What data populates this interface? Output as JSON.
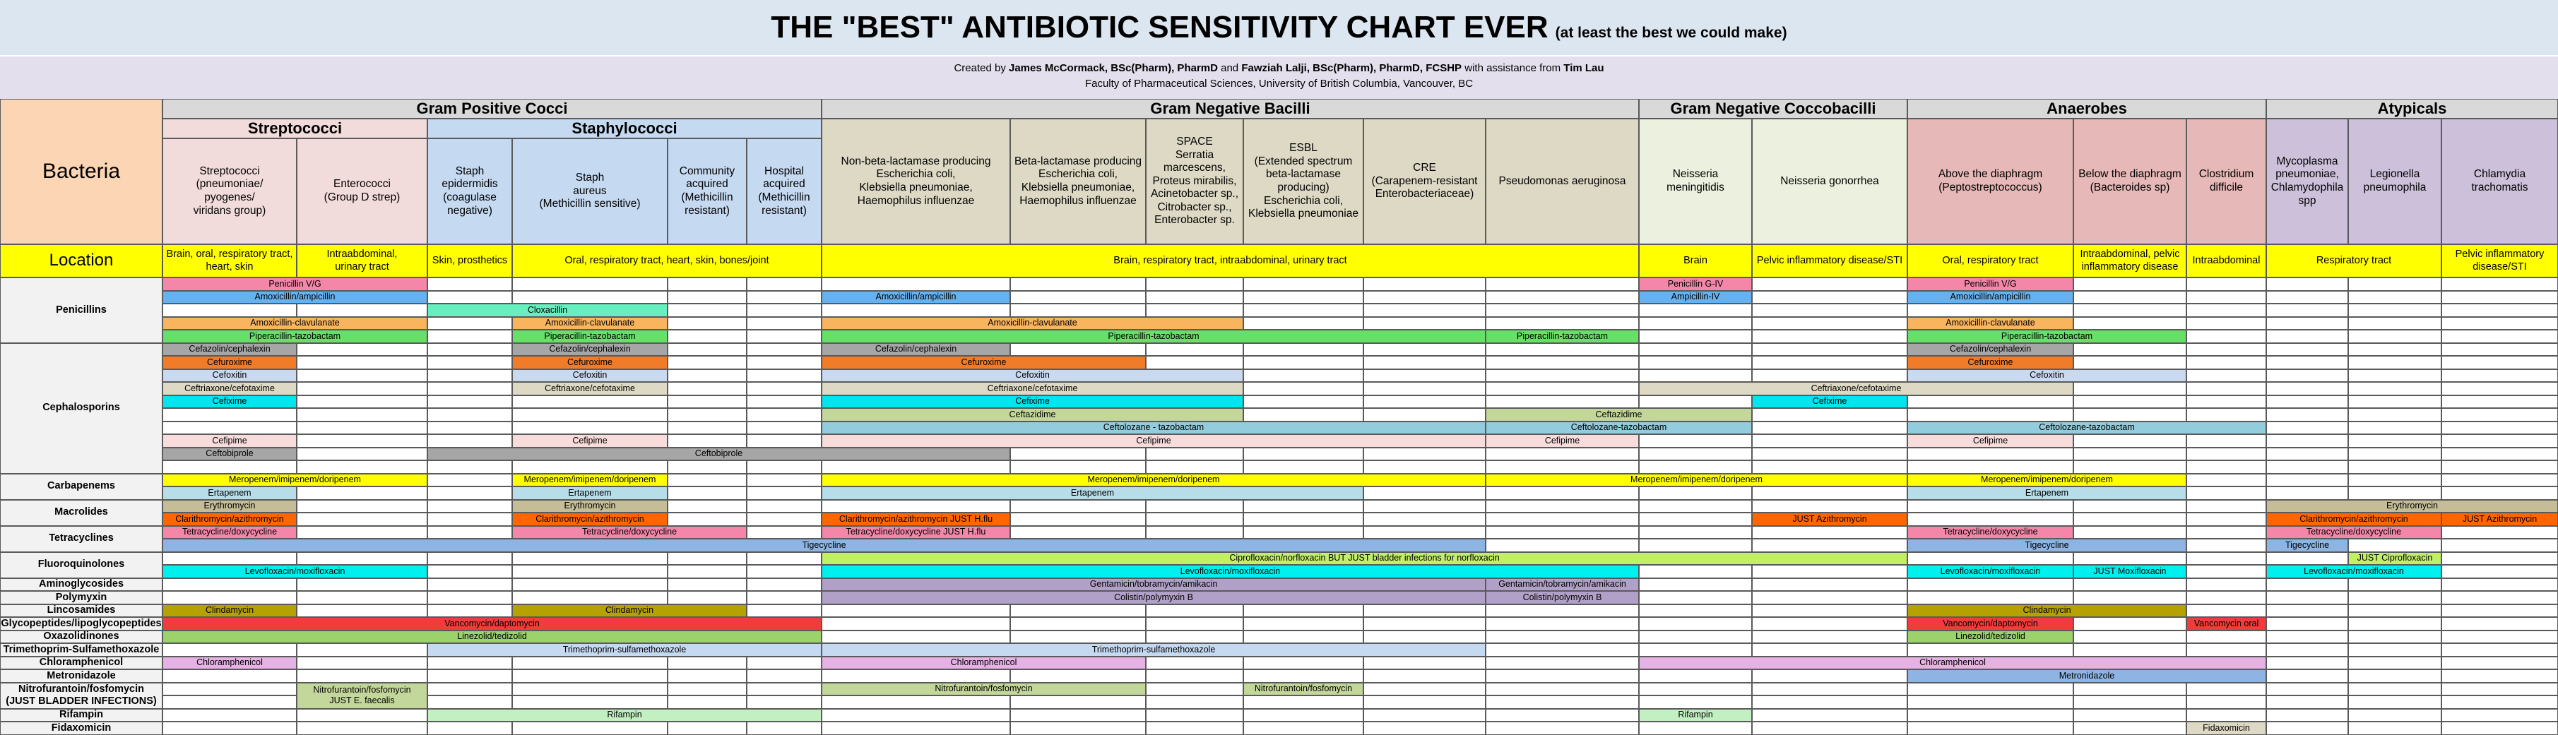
{
  "title": {
    "main": "THE \"BEST\" ANTIBIOTIC SENSITIVITY CHART EVER",
    "sub": "(at least the best we could make)"
  },
  "credits": {
    "created_by": "Created by",
    "author1": "James McCormack, BSc(Pharm), PharmD",
    "and": "and",
    "author2": "Fawziah Lalji, BSc(Pharm), PharmD, FCSHP",
    "assistance": "with assistance from",
    "assistant": "Tim Lau",
    "faculty": "Faculty of Pharmaceutical Sciences, University of British Columbia, Vancouver, BC"
  },
  "labels": {
    "bacteria": "Bacteria",
    "location": "Location"
  },
  "groups": [
    {
      "label": "Gram Positive Cocci",
      "color": "#d9d9d9"
    },
    {
      "label": "Gram Negative Bacilli",
      "color": "#d9d9d9"
    },
    {
      "label": "Gram Negative Coccobacilli",
      "color": "#d9d9d9"
    },
    {
      "label": "Anaerobes",
      "color": "#d9d9d9"
    },
    {
      "label": "Atypicals",
      "color": "#d9d9d9"
    }
  ],
  "subgroups": [
    {
      "label": "Streptococci",
      "color": "#f2dcdb"
    },
    {
      "label": "Staphylococci",
      "color": "#c5d9f1"
    }
  ],
  "organisms": [
    {
      "label": "Streptococci\n(pneumoniae/\npyogenes/\nviridans group)",
      "color": "#f2dcdb"
    },
    {
      "label": "Enterococci\n(Group D strep)",
      "color": "#f2dcdb"
    },
    {
      "label": "Staph\nepidermidis\n(coagulase\nnegative)",
      "color": "#c5d9f1"
    },
    {
      "label": "Staph\naureus\n(Methicillin sensitive)",
      "color": "#c5d9f1"
    },
    {
      "label": "Community\nacquired\n(Methicillin\nresistant)",
      "color": "#c5d9f1"
    },
    {
      "label": "Hospital\nacquired\n(Methicillin\nresistant)",
      "color": "#c5d9f1"
    },
    {
      "label": "Non-beta-lactamase producing\nEscherichia coli,\nKlebsiella pneumoniae,\nHaemophilus influenzae",
      "color": "#ddd9c4"
    },
    {
      "label": "Beta-lactamase producing\nEscherichia coli,\nKlebsiella pneumoniae,\nHaemophilus influenzae",
      "color": "#ddd9c4"
    },
    {
      "label": "SPACE\nSerratia\nmarcescens,\nProteus mirabilis,\nAcinetobacter sp.,\nCitrobacter sp.,\nEnterobacter sp.",
      "color": "#ddd9c4"
    },
    {
      "label": "ESBL\n(Extended spectrum\nbeta-lactamase\nproducing)\nEscherichia coli,\nKlebsiella pneumoniae",
      "color": "#ddd9c4"
    },
    {
      "label": "CRE\n(Carapenem-resistant\nEnterobacteriaceae)",
      "color": "#ddd9c4"
    },
    {
      "label": "Pseudomonas aeruginosa",
      "color": "#ddd9c4"
    },
    {
      "label": "Neisseria\nmeningitidis",
      "color": "#ebf1de"
    },
    {
      "label": "Neisseria gonorrhea",
      "color": "#ebf1de"
    },
    {
      "label": "Above the diaphragm\n(Peptostreptococcus)",
      "color": "#e6b8b7"
    },
    {
      "label": "Below the diaphragm\n(Bacteroides sp)",
      "color": "#e6b8b7"
    },
    {
      "label": "Clostridium\ndifficile",
      "color": "#e6b8b7"
    },
    {
      "label": "Mycoplasma\npneumoniae,\nChlamydophila\nspp",
      "color": "#ccc0da"
    },
    {
      "label": "Legionella\npneumophila",
      "color": "#ccc0da"
    },
    {
      "label": "Chlamydia\ntrachomatis",
      "color": "#ccc0da"
    }
  ],
  "locations": [
    {
      "from": 0,
      "to": 0,
      "label": "Brain, oral, respiratory tract,\nheart, skin"
    },
    {
      "from": 1,
      "to": 1,
      "label": "Intraabdominal,\nurinary tract"
    },
    {
      "from": 2,
      "to": 2,
      "label": "Skin, prosthetics"
    },
    {
      "from": 3,
      "to": 5,
      "label": "Oral, respiratory tract, heart, skin, bones/joint"
    },
    {
      "from": 6,
      "to": 11,
      "label": "Brain, respiratory tract, intraabdominal, urinary tract"
    },
    {
      "from": 12,
      "to": 12,
      "label": "Brain"
    },
    {
      "from": 13,
      "to": 13,
      "label": "Pelvic inflammatory disease/STI"
    },
    {
      "from": 14,
      "to": 14,
      "label": "Oral, respiratory tract"
    },
    {
      "from": 15,
      "to": 15,
      "label": "Intraabdominal, pelvic\ninflammatory disease"
    },
    {
      "from": 16,
      "to": 16,
      "label": "Intraabdominal"
    },
    {
      "from": 17,
      "to": 18,
      "label": "Respiratory tract"
    },
    {
      "from": 19,
      "to": 19,
      "label": "Pelvic inflammatory\ndisease/STI"
    }
  ],
  "classes": [
    {
      "label": "Penicillins",
      "rows": 5
    },
    {
      "label": "Cephalosporins",
      "rows": 10
    },
    {
      "label": "Carbapenems",
      "rows": 2
    },
    {
      "label": "Macrolides",
      "rows": 2
    },
    {
      "label": "Tetracyclines",
      "rows": 2
    },
    {
      "label": "Fluoroquinolones",
      "rows": 2
    },
    {
      "label": "Aminoglycosides",
      "rows": 1
    },
    {
      "label": "Polymyxin",
      "rows": 1
    },
    {
      "label": "Lincosamides",
      "rows": 1
    },
    {
      "label": "Glycopeptides/lipoglycopeptides",
      "rows": 1
    },
    {
      "label": "Oxazolidinones",
      "rows": 1
    },
    {
      "label": "Trimethoprim-Sulfamethoxazole",
      "rows": 1
    },
    {
      "label": "Chloramphenicol",
      "rows": 1
    },
    {
      "label": "Metronidazole",
      "rows": 1
    },
    {
      "label": "Nitrofurantoin/fosfomycin\n(JUST BLADDER INFECTIONS)",
      "rows": 2
    },
    {
      "label": "Rifampin",
      "rows": 1
    },
    {
      "label": "Fidaxomicin",
      "rows": 1
    }
  ],
  "coverage": [
    {
      "r": 0,
      "c1": 0,
      "c2": 1,
      "label": "Penicillin V/G",
      "color": "#f487a9"
    },
    {
      "r": 0,
      "c1": 12,
      "c2": 12,
      "label": "Penicillin G-IV",
      "color": "#f487a9"
    },
    {
      "r": 0,
      "c1": 14,
      "c2": 14,
      "label": "Penicillin V/G",
      "color": "#f487a9"
    },
    {
      "r": 1,
      "c1": 0,
      "c2": 1,
      "label": "Amoxicillin/ampicillin",
      "color": "#66b2f0"
    },
    {
      "r": 1,
      "c1": 6,
      "c2": 6,
      "label": "Amoxicillin/ampicillin",
      "color": "#66b2f0"
    },
    {
      "r": 1,
      "c1": 12,
      "c2": 12,
      "label": "Ampicillin-IV",
      "color": "#66b2f0"
    },
    {
      "r": 1,
      "c1": 14,
      "c2": 14,
      "label": "Amoxicillin/ampicillin",
      "color": "#66b2f0"
    },
    {
      "r": 2,
      "c1": 2,
      "c2": 3,
      "label": "Cloxacillin",
      "color": "#66f0c0"
    },
    {
      "r": 3,
      "c1": 0,
      "c2": 1,
      "label": "Amoxicillin-clavulanate",
      "color": "#f9b45e"
    },
    {
      "r": 3,
      "c1": 3,
      "c2": 3,
      "label": "Amoxicillin-clavulanate",
      "color": "#f9b45e"
    },
    {
      "r": 3,
      "c1": 6,
      "c2": 8,
      "label": "Amoxicillin-clavulanate",
      "color": "#f9b45e"
    },
    {
      "r": 3,
      "c1": 14,
      "c2": 14,
      "label": "Amoxicillin-clavulanate",
      "color": "#f9b45e"
    },
    {
      "r": 4,
      "c1": 0,
      "c2": 1,
      "label": "Piperacillin-tazobactam",
      "color": "#66e066"
    },
    {
      "r": 4,
      "c1": 3,
      "c2": 3,
      "label": "Piperacillin-tazobactam",
      "color": "#66e066"
    },
    {
      "r": 4,
      "c1": 6,
      "c2": 10,
      "label": "Piperacillin-tazobactam",
      "color": "#66e066"
    },
    {
      "r": 4,
      "c1": 11,
      "c2": 11,
      "label": "Piperacillin-tazobactam",
      "color": "#66e066"
    },
    {
      "r": 4,
      "c1": 14,
      "c2": 15,
      "label": "Piperacillin-tazobactam",
      "color": "#66e066"
    },
    {
      "r": 5,
      "c1": 0,
      "c2": 0,
      "label": "Cefazolin/cephalexin",
      "color": "#a6a6a6"
    },
    {
      "r": 5,
      "c1": 3,
      "c2": 3,
      "label": "Cefazolin/cephalexin",
      "color": "#a6a6a6"
    },
    {
      "r": 5,
      "c1": 6,
      "c2": 6,
      "label": "Cefazolin/cephalexin",
      "color": "#a6a6a6"
    },
    {
      "r": 5,
      "c1": 14,
      "c2": 14,
      "label": "Cefazolin/cephalexin",
      "color": "#a6a6a6"
    },
    {
      "r": 6,
      "c1": 0,
      "c2": 0,
      "label": "Cefuroxime",
      "color": "#f07c2a"
    },
    {
      "r": 6,
      "c1": 3,
      "c2": 3,
      "label": "Cefuroxime",
      "color": "#f07c2a"
    },
    {
      "r": 6,
      "c1": 6,
      "c2": 7,
      "label": "Cefuroxime",
      "color": "#f07c2a"
    },
    {
      "r": 6,
      "c1": 14,
      "c2": 14,
      "label": "Cefuroxime",
      "color": "#f07c2a"
    },
    {
      "r": 7,
      "c1": 0,
      "c2": 0,
      "label": "Cefoxitin",
      "color": "#c9daf0"
    },
    {
      "r": 7,
      "c1": 3,
      "c2": 3,
      "label": "Cefoxitin",
      "color": "#c9daf0"
    },
    {
      "r": 7,
      "c1": 6,
      "c2": 8,
      "label": "Cefoxitin",
      "color": "#c9daf0"
    },
    {
      "r": 7,
      "c1": 14,
      "c2": 15,
      "label": "Cefoxitin",
      "color": "#c9daf0"
    },
    {
      "r": 8,
      "c1": 0,
      "c2": 0,
      "label": "Ceftriaxone/cefotaxime",
      "color": "#ddd9c4"
    },
    {
      "r": 8,
      "c1": 3,
      "c2": 3,
      "label": "Ceftriaxone/cefotaxime",
      "color": "#ddd9c4"
    },
    {
      "r": 8,
      "c1": 6,
      "c2": 8,
      "label": "Ceftriaxone/cefotaxime",
      "color": "#ddd9c4"
    },
    {
      "r": 8,
      "c1": 12,
      "c2": 14,
      "label": "Ceftriaxone/cefotaxime",
      "color": "#ddd9c4"
    },
    {
      "r": 9,
      "c1": 0,
      "c2": 0,
      "label": "Cefixime",
      "color": "#00e5f0"
    },
    {
      "r": 9,
      "c1": 6,
      "c2": 8,
      "label": "Cefixime",
      "color": "#00e5f0"
    },
    {
      "r": 9,
      "c1": 13,
      "c2": 13,
      "label": "Cefixime",
      "color": "#00e5f0"
    },
    {
      "r": 10,
      "c1": 6,
      "c2": 8,
      "label": "Ceftazidime",
      "color": "#c4d79b"
    },
    {
      "r": 10,
      "c1": 11,
      "c2": 12,
      "label": "Ceftazidime",
      "color": "#c4d79b"
    },
    {
      "r": 11,
      "c1": 6,
      "c2": 10,
      "label": "Ceftolozane - tazobactam",
      "color": "#93cddd"
    },
    {
      "r": 11,
      "c1": 11,
      "c2": 12,
      "label": "Ceftolozane-tazobactam",
      "color": "#93cddd"
    },
    {
      "r": 11,
      "c1": 14,
      "c2": 16,
      "label": "Ceftolozane-tazobactam",
      "color": "#93cddd"
    },
    {
      "r": 12,
      "c1": 0,
      "c2": 0,
      "label": "Cefipime",
      "color": "#f8dcdc"
    },
    {
      "r": 12,
      "c1": 3,
      "c2": 3,
      "label": "Cefipime",
      "color": "#f8dcdc"
    },
    {
      "r": 12,
      "c1": 6,
      "c2": 10,
      "label": "Cefipime",
      "color": "#f8dcdc"
    },
    {
      "r": 12,
      "c1": 11,
      "c2": 11,
      "label": "Cefipime",
      "color": "#f8dcdc"
    },
    {
      "r": 12,
      "c1": 14,
      "c2": 14,
      "label": "Cefipime",
      "color": "#f8dcdc"
    },
    {
      "r": 13,
      "c1": 0,
      "c2": 0,
      "label": "Ceftobiprole",
      "color": "#a6a6a6"
    },
    {
      "r": 13,
      "c1": 2,
      "c2": 6,
      "label": "Ceftobiprole",
      "color": "#a6a6a6"
    },
    {
      "r": 15,
      "c1": 0,
      "c2": 1,
      "label": "Meropenem/imipenem/doripenem",
      "color": "#ffff00"
    },
    {
      "r": 15,
      "c1": 3,
      "c2": 3,
      "label": "Meropenem/imipenem/doripenem",
      "color": "#ffff00"
    },
    {
      "r": 15,
      "c1": 6,
      "c2": 10,
      "label": "Meropenem/imipenem/doripenem",
      "color": "#ffff00"
    },
    {
      "r": 15,
      "c1": 11,
      "c2": 13,
      "label": "Meropenem/imipenem/doripenem",
      "color": "#ffff00"
    },
    {
      "r": 15,
      "c1": 14,
      "c2": 15,
      "label": "Meropenem/imipenem/doripenem",
      "color": "#ffff00"
    },
    {
      "r": 16,
      "c1": 0,
      "c2": 0,
      "label": "Ertapenem",
      "color": "#b7dde8"
    },
    {
      "r": 16,
      "c1": 3,
      "c2": 3,
      "label": "Ertapenem",
      "color": "#b7dde8"
    },
    {
      "r": 16,
      "c1": 6,
      "c2": 9,
      "label": "Ertapenem",
      "color": "#b7dde8"
    },
    {
      "r": 16,
      "c1": 14,
      "c2": 15,
      "label": "Ertapenem",
      "color": "#b7dde8"
    },
    {
      "r": 17,
      "c1": 0,
      "c2": 0,
      "label": "Erythromycin",
      "color": "#c4bd97"
    },
    {
      "r": 17,
      "c1": 3,
      "c2": 3,
      "label": "Erythromycin",
      "color": "#c4bd97"
    },
    {
      "r": 17,
      "c1": 17,
      "c2": 19,
      "label": "Erythromycin",
      "color": "#c4bd97"
    },
    {
      "r": 18,
      "c1": 0,
      "c2": 0,
      "label": "Clarithromycin/azithromycin",
      "color": "#ff6600"
    },
    {
      "r": 18,
      "c1": 3,
      "c2": 3,
      "label": "Clarithromycin/azithromycin",
      "color": "#ff6600"
    },
    {
      "r": 18,
      "c1": 6,
      "c2": 6,
      "label": "Clarithromycin/azithromycin JUST H.flu",
      "color": "#ff6600"
    },
    {
      "r": 18,
      "c1": 13,
      "c2": 13,
      "label": "JUST Azithromycin",
      "color": "#ff6600"
    },
    {
      "r": 18,
      "c1": 17,
      "c2": 18,
      "label": "Clarithromycin/azithromycin",
      "color": "#ff6600"
    },
    {
      "r": 18,
      "c1": 19,
      "c2": 19,
      "label": "JUST Azithromycin",
      "color": "#ff6600"
    },
    {
      "r": 19,
      "c1": 0,
      "c2": 0,
      "label": "Tetracycline/doxycycline",
      "color": "#f487a9"
    },
    {
      "r": 19,
      "c1": 3,
      "c2": 4,
      "label": "Tetracycline/doxycycline",
      "color": "#f487a9"
    },
    {
      "r": 19,
      "c1": 6,
      "c2": 6,
      "label": "Tetracycline/doxycycline  JUST H.flu",
      "color": "#f487a9"
    },
    {
      "r": 19,
      "c1": 14,
      "c2": 14,
      "label": "Tetracycline/doxycycline",
      "color": "#f487a9"
    },
    {
      "r": 19,
      "c1": 17,
      "c2": 18,
      "label": "Tetracycline/doxycycline",
      "color": "#f487a9"
    },
    {
      "r": 20,
      "c1": 0,
      "c2": 10,
      "label": "Tigecycline",
      "color": "#8db4e2"
    },
    {
      "r": 20,
      "c1": 14,
      "c2": 15,
      "label": "Tigecycline",
      "color": "#8db4e2"
    },
    {
      "r": 20,
      "c1": 17,
      "c2": 17,
      "label": "Tigecycline",
      "color": "#8db4e2"
    },
    {
      "r": 21,
      "c1": 6,
      "c2": 13,
      "label": "Ciprofloxacin/norfloxacin BUT JUST bladder infections for norfloxacin",
      "color": "#c2f065"
    },
    {
      "r": 21,
      "c1": 18,
      "c2": 18,
      "label": "JUST Ciprofloxacin",
      "color": "#c2f065"
    },
    {
      "r": 22,
      "c1": 0,
      "c2": 1,
      "label": "Levofloxacin/moxifloxacin",
      "color": "#00f0f0"
    },
    {
      "r": 22,
      "c1": 6,
      "c2": 11,
      "label": "Levofloxacin/moxifloxacin",
      "color": "#00f0f0"
    },
    {
      "r": 22,
      "c1": 14,
      "c2": 14,
      "label": "Levofloxacin/moxifloxacin",
      "color": "#00f0f0"
    },
    {
      "r": 22,
      "c1": 15,
      "c2": 15,
      "label": "JUST Moxifloxacin",
      "color": "#00f0f0"
    },
    {
      "r": 22,
      "c1": 17,
      "c2": 18,
      "label": "Levofloxacin/moxifloxacin",
      "color": "#00f0f0"
    },
    {
      "r": 23,
      "c1": 6,
      "c2": 10,
      "label": "Gentamicin/tobramycin/amikacin",
      "color": "#b1a0c7"
    },
    {
      "r": 23,
      "c1": 11,
      "c2": 11,
      "label": "Gentamicin/tobramycin/amikacin",
      "color": "#b1a0c7"
    },
    {
      "r": 24,
      "c1": 6,
      "c2": 10,
      "label": "Colistin/polymyxin B",
      "color": "#b1a0c7"
    },
    {
      "r": 24,
      "c1": 11,
      "c2": 11,
      "label": "Colistin/polymyxin B",
      "color": "#b1a0c7"
    },
    {
      "r": 25,
      "c1": 0,
      "c2": 0,
      "label": "Clindamycin",
      "color": "#b5a200"
    },
    {
      "r": 25,
      "c1": 3,
      "c2": 4,
      "label": "Clindamycin",
      "color": "#b5a200"
    },
    {
      "r": 25,
      "c1": 14,
      "c2": 15,
      "label": "Clindamycin",
      "color": "#b5a200"
    },
    {
      "r": 26,
      "c1": 0,
      "c2": 5,
      "label": "Vancomycin/daptomycin",
      "color": "#f03c3c"
    },
    {
      "r": 26,
      "c1": 14,
      "c2": 14,
      "label": "Vancomycin/daptomycin",
      "color": "#f03c3c"
    },
    {
      "r": 26,
      "c1": 16,
      "c2": 16,
      "label": "Vancomycin oral",
      "color": "#f03c3c"
    },
    {
      "r": 27,
      "c1": 0,
      "c2": 5,
      "label": "Linezolid/tedizolid",
      "color": "#9bd26b"
    },
    {
      "r": 27,
      "c1": 14,
      "c2": 14,
      "label": "Linezolid/tedizolid",
      "color": "#9bd26b"
    },
    {
      "r": 28,
      "c1": 2,
      "c2": 5,
      "label": "Trimethoprim-sulfamethoxazole",
      "color": "#c5d9f1"
    },
    {
      "r": 28,
      "c1": 6,
      "c2": 10,
      "label": "Trimethoprim-sulfamethoxazole",
      "color": "#c5d9f1"
    },
    {
      "r": 29,
      "c1": 0,
      "c2": 0,
      "label": "Chloramphenicol",
      "color": "#e6b2e6"
    },
    {
      "r": 29,
      "c1": 6,
      "c2": 7,
      "label": "Chloramphenicol",
      "color": "#e6b2e6"
    },
    {
      "r": 29,
      "c1": 12,
      "c2": 16,
      "label": "Chloramphenicol",
      "color": "#e6b2e6"
    },
    {
      "r": 30,
      "c1": 14,
      "c2": 16,
      "label": "Metronidazole",
      "color": "#8db4e2"
    },
    {
      "r": 31,
      "c1": 1,
      "c2": 1,
      "label": "Nitrofurantoin/fosfomycin\nJUST E. faecalis",
      "color": "#c4d79b"
    },
    {
      "r": 31,
      "c1": 6,
      "c2": 7,
      "label": "Nitrofurantoin/fosfomycin",
      "color": "#c4d79b"
    },
    {
      "r": 31,
      "c1": 9,
      "c2": 9,
      "label": "Nitrofurantoin/fosfomycin",
      "color": "#c4d79b"
    },
    {
      "r": 33,
      "c1": 2,
      "c2": 5,
      "label": "Rifampin",
      "color": "#c2f0c2"
    },
    {
      "r": 33,
      "c1": 12,
      "c2": 12,
      "label": "Rifampin",
      "color": "#c2f0c2"
    },
    {
      "r": 34,
      "c1": 16,
      "c2": 16,
      "label": "Fidaxomicin",
      "color": "#ddd9c4"
    }
  ],
  "colors": {
    "title_bg": "#dce6f1",
    "credit_bg": "#e4dfec",
    "bacteria_bg": "#fcd5b4",
    "location_bg": "#ffff00",
    "class_bg": "#f2f2f2",
    "grid_line": "#5a5a5a"
  }
}
